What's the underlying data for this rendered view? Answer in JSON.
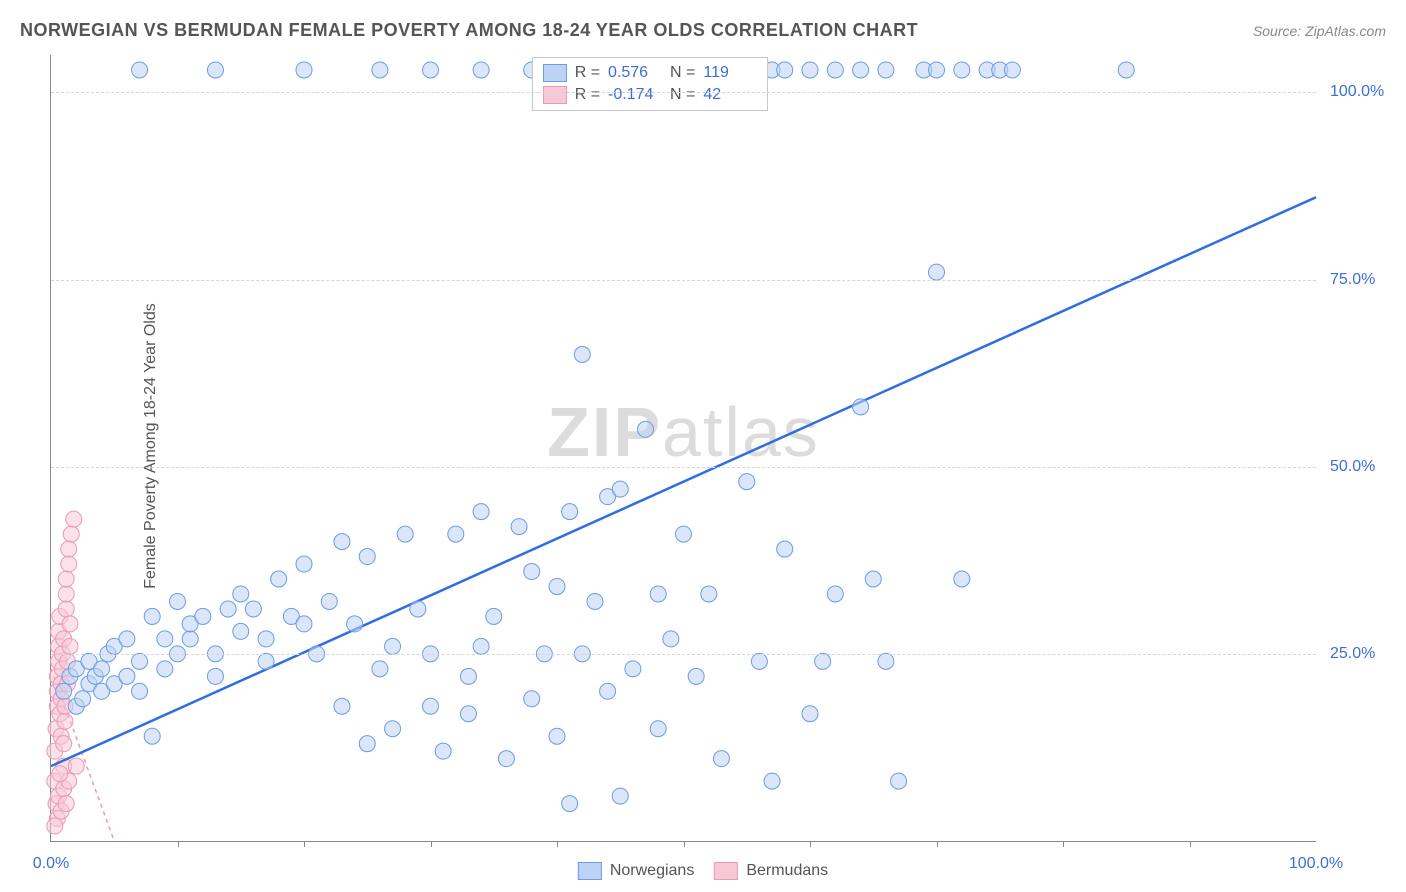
{
  "header": {
    "title": "NORWEGIAN VS BERMUDAN FEMALE POVERTY AMONG 18-24 YEAR OLDS CORRELATION CHART",
    "source_prefix": "Source: ",
    "source_name": "ZipAtlas.com"
  },
  "axes": {
    "ylabel": "Female Poverty Among 18-24 Year Olds",
    "xlim": [
      0,
      100
    ],
    "ylim": [
      0,
      105
    ],
    "ytick_labels": [
      "25.0%",
      "50.0%",
      "75.0%",
      "100.0%"
    ],
    "ytick_vals": [
      25,
      50,
      75,
      100
    ],
    "x_left_label": "0.0%",
    "x_right_label": "100.0%",
    "xtick_vals": [
      10,
      20,
      30,
      40,
      50,
      60,
      70,
      80,
      90
    ],
    "grid_color": "#d5d5d5",
    "axis_color": "#888888",
    "tick_label_color": "#3b6fd6"
  },
  "watermark": {
    "zip": "ZIP",
    "rest": "atlas"
  },
  "stats": {
    "rows": [
      {
        "swatch_fill": "#bdd3f3",
        "swatch_border": "#6a9be8",
        "r_label": "R =",
        "r_val": "0.576",
        "n_label": "N =",
        "n_val": "119"
      },
      {
        "swatch_fill": "#f7c9d6",
        "swatch_border": "#ea9ab2",
        "r_label": "R =",
        "r_val": "-0.174",
        "n_label": "N =",
        "n_val": "42"
      }
    ]
  },
  "legend": {
    "items": [
      {
        "swatch_fill": "#bdd3f3",
        "swatch_border": "#6a9be8",
        "label": "Norwegians"
      },
      {
        "swatch_fill": "#f7c9d6",
        "swatch_border": "#ea9ab2",
        "label": "Bermudans"
      }
    ]
  },
  "series": {
    "norwegians": {
      "fill": "#bdd3f3",
      "stroke": "#6a9be8",
      "fill_opacity": 0.55,
      "radius": 8,
      "trend": {
        "x1": 0,
        "y1": 10,
        "x2": 100,
        "y2": 86,
        "color": "#2f6de0",
        "width": 2.5
      },
      "points": [
        [
          1,
          20
        ],
        [
          1.5,
          22
        ],
        [
          2,
          23
        ],
        [
          2,
          18
        ],
        [
          2.5,
          19
        ],
        [
          3,
          24
        ],
        [
          3,
          21
        ],
        [
          3.5,
          22
        ],
        [
          4,
          23
        ],
        [
          4,
          20
        ],
        [
          4.5,
          25
        ],
        [
          5,
          26
        ],
        [
          5,
          21
        ],
        [
          6,
          27
        ],
        [
          6,
          22
        ],
        [
          7,
          24
        ],
        [
          7,
          20
        ],
        [
          8,
          30
        ],
        [
          8,
          14
        ],
        [
          9,
          27
        ],
        [
          9,
          23
        ],
        [
          10,
          32
        ],
        [
          10,
          25
        ],
        [
          11,
          27
        ],
        [
          11,
          29
        ],
        [
          12,
          30
        ],
        [
          13,
          25
        ],
        [
          13,
          22
        ],
        [
          14,
          31
        ],
        [
          15,
          28
        ],
        [
          15,
          33
        ],
        [
          16,
          31
        ],
        [
          17,
          27
        ],
        [
          17,
          24
        ],
        [
          18,
          35
        ],
        [
          19,
          30
        ],
        [
          20,
          37
        ],
        [
          20,
          29
        ],
        [
          21,
          25
        ],
        [
          22,
          32
        ],
        [
          23,
          40
        ],
        [
          23,
          18
        ],
        [
          24,
          29
        ],
        [
          25,
          38
        ],
        [
          25,
          13
        ],
        [
          26,
          23
        ],
        [
          27,
          15
        ],
        [
          27,
          26
        ],
        [
          28,
          41
        ],
        [
          29,
          31
        ],
        [
          30,
          25
        ],
        [
          30,
          18
        ],
        [
          31,
          12
        ],
        [
          32,
          41
        ],
        [
          33,
          22
        ],
        [
          33,
          17
        ],
        [
          34,
          44
        ],
        [
          34,
          26
        ],
        [
          35,
          30
        ],
        [
          36,
          11
        ],
        [
          37,
          42
        ],
        [
          38,
          36
        ],
        [
          38,
          19
        ],
        [
          39,
          25
        ],
        [
          40,
          34
        ],
        [
          40,
          14
        ],
        [
          41,
          44
        ],
        [
          41,
          5
        ],
        [
          42,
          65
        ],
        [
          42,
          25
        ],
        [
          43,
          32
        ],
        [
          44,
          46
        ],
        [
          44,
          20
        ],
        [
          45,
          47
        ],
        [
          45,
          6
        ],
        [
          46,
          23
        ],
        [
          47,
          55
        ],
        [
          48,
          33
        ],
        [
          48,
          15
        ],
        [
          49,
          27
        ],
        [
          50,
          41
        ],
        [
          51,
          22
        ],
        [
          52,
          33
        ],
        [
          53,
          11
        ],
        [
          55,
          48
        ],
        [
          56,
          24
        ],
        [
          57,
          8
        ],
        [
          58,
          39
        ],
        [
          60,
          17
        ],
        [
          61,
          24
        ],
        [
          62,
          33
        ],
        [
          64,
          58
        ],
        [
          65,
          35
        ],
        [
          66,
          24
        ],
        [
          67,
          8
        ],
        [
          70,
          76
        ],
        [
          72,
          35
        ],
        [
          55,
          103
        ],
        [
          57,
          103
        ],
        [
          58,
          103
        ],
        [
          60,
          103
        ],
        [
          62,
          103
        ],
        [
          64,
          103
        ],
        [
          66,
          103
        ],
        [
          69,
          103
        ],
        [
          70,
          103
        ],
        [
          72,
          103
        ],
        [
          74,
          103
        ],
        [
          75,
          103
        ],
        [
          76,
          103
        ],
        [
          85,
          103
        ],
        [
          7,
          103
        ],
        [
          13,
          103
        ],
        [
          20,
          103
        ],
        [
          26,
          103
        ],
        [
          30,
          103
        ],
        [
          34,
          103
        ],
        [
          38,
          103
        ],
        [
          44,
          103
        ]
      ]
    },
    "bermudans": {
      "fill": "#f7c9d6",
      "stroke": "#ea9ab2",
      "fill_opacity": 0.55,
      "radius": 8,
      "trend": {
        "x1": 0,
        "y1": 23,
        "x2": 5,
        "y2": 0,
        "color": "#ea9ab2",
        "width": 1.5,
        "dash": "4,4"
      },
      "points": [
        [
          0.3,
          12
        ],
        [
          0.3,
          8
        ],
        [
          0.4,
          15
        ],
        [
          0.5,
          18
        ],
        [
          0.5,
          20
        ],
        [
          0.5,
          22
        ],
        [
          0.6,
          24
        ],
        [
          0.6,
          26
        ],
        [
          0.6,
          28
        ],
        [
          0.7,
          30
        ],
        [
          0.7,
          17
        ],
        [
          0.8,
          14
        ],
        [
          0.8,
          19
        ],
        [
          0.8,
          21
        ],
        [
          0.9,
          23
        ],
        [
          0.9,
          25
        ],
        [
          1.0,
          27
        ],
        [
          1.0,
          10
        ],
        [
          1.0,
          13
        ],
        [
          1.1,
          16
        ],
        [
          1.1,
          18
        ],
        [
          1.2,
          31
        ],
        [
          1.2,
          33
        ],
        [
          1.2,
          35
        ],
        [
          1.3,
          21
        ],
        [
          1.3,
          24
        ],
        [
          1.4,
          37
        ],
        [
          1.4,
          39
        ],
        [
          1.5,
          26
        ],
        [
          1.5,
          29
        ],
        [
          1.6,
          41
        ],
        [
          1.8,
          43
        ],
        [
          2.0,
          10
        ],
        [
          0.4,
          5
        ],
        [
          0.5,
          3
        ],
        [
          0.6,
          6
        ],
        [
          0.8,
          4
        ],
        [
          1.0,
          7
        ],
        [
          1.2,
          5
        ],
        [
          1.4,
          8
        ],
        [
          0.3,
          2
        ],
        [
          0.7,
          9
        ]
      ]
    }
  }
}
